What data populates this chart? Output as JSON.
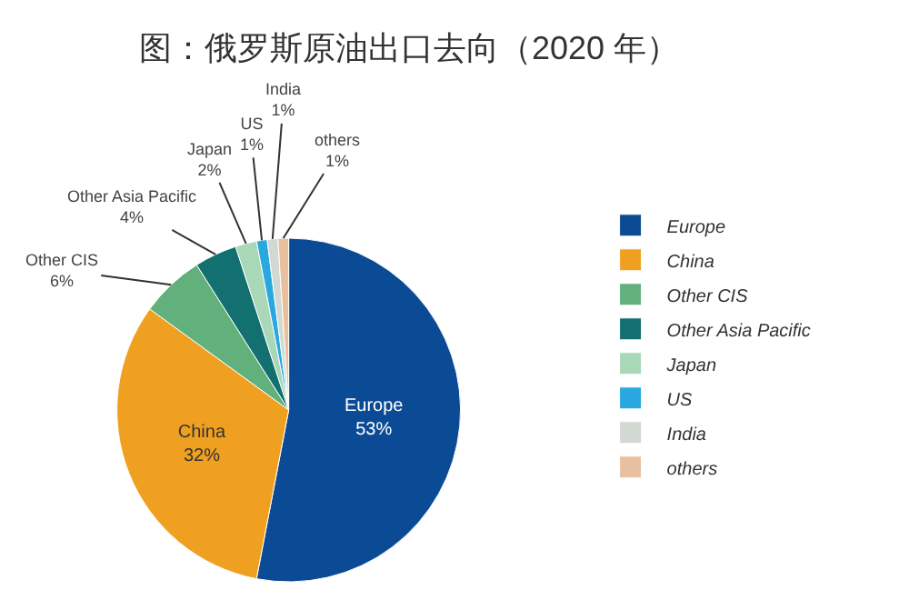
{
  "chart_data": {
    "type": "pie",
    "title": "图：俄罗斯原油出口去向（2020 年）",
    "categories": [
      "Europe",
      "China",
      "Other CIS",
      "Other Asia Pacific",
      "Japan",
      "US",
      "India",
      "others"
    ],
    "values": [
      53,
      32,
      6,
      4,
      2,
      1,
      1,
      1
    ],
    "value_labels": [
      "53%",
      "32%",
      "6%",
      "4%",
      "2%",
      "1%",
      "1%",
      "1%"
    ],
    "colors": [
      "#0b4a94",
      "#f0a020",
      "#62b07c",
      "#127070",
      "#a8d8b8",
      "#29a8e0",
      "#d2d8d2",
      "#e8c0a0"
    ],
    "legend": "right"
  }
}
